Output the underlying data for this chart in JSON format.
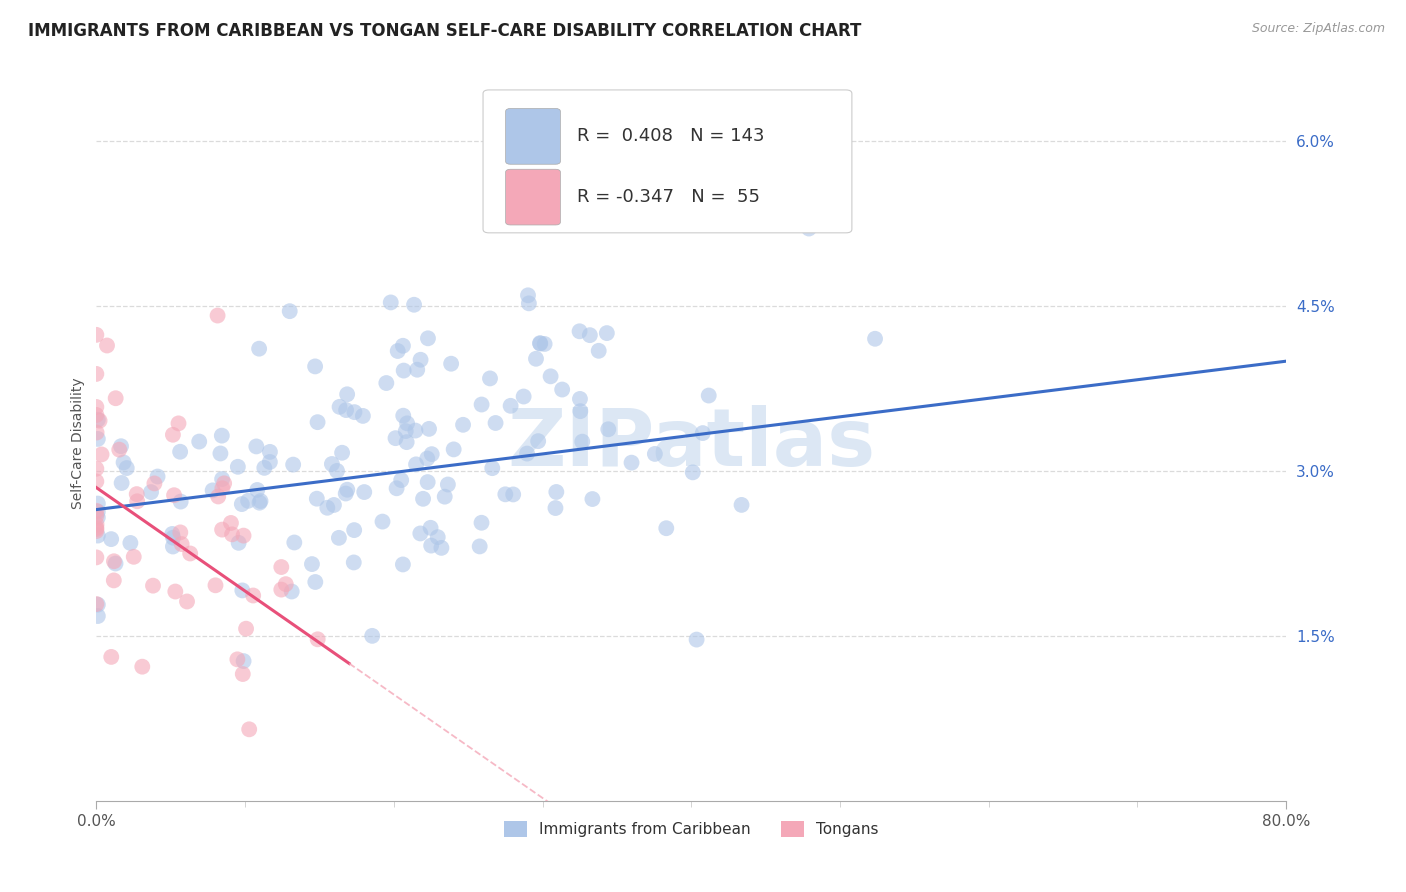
{
  "title": "IMMIGRANTS FROM CARIBBEAN VS TONGAN SELF-CARE DISABILITY CORRELATION CHART",
  "source_text": "Source: ZipAtlas.com",
  "ylabel": "Self-Care Disability",
  "x_min": 0.0,
  "x_max": 80.0,
  "y_min": 0.0,
  "y_max": 6.5,
  "y_ticks": [
    1.5,
    3.0,
    4.5,
    6.0
  ],
  "y_tick_labels": [
    "1.5%",
    "3.0%",
    "4.5%",
    "6.0%"
  ],
  "x_ticks": [
    0.0,
    80.0
  ],
  "x_tick_labels": [
    "0.0%",
    "80.0%"
  ],
  "legend_entries": [
    {
      "label": "Immigrants from Caribbean",
      "color": "#aec6e8"
    },
    {
      "label": "Tongans",
      "color": "#f4a8b8"
    }
  ],
  "stat_r1": "0.408",
  "stat_n1": "143",
  "stat_r2": "-0.347",
  "stat_n2": "55",
  "stat_color1": "#aec6e8",
  "stat_color2": "#f4a8b8",
  "blue_scatter_color": "#aec6e8",
  "pink_scatter_color": "#f4a8b8",
  "blue_line_color": "#3b6cc7",
  "pink_line_color": "#e8507a",
  "pink_dash_color": "#f4a8b8",
  "watermark_color": "#c5d8ee",
  "title_fontsize": 12,
  "axis_label_fontsize": 10,
  "tick_fontsize": 11,
  "stat_fontsize": 13,
  "background_color": "#ffffff",
  "grid_color": "#cccccc",
  "blue_line_y0": 2.65,
  "blue_line_y1": 4.0,
  "pink_line_x0": 0.0,
  "pink_line_y0": 2.85,
  "pink_line_x1": 17.0,
  "pink_line_y1": 1.25,
  "pink_dash_x0": 17.0,
  "pink_dash_x1": 32.0,
  "blue_x_mean": 18.0,
  "blue_y_mean": 3.1,
  "blue_x_std": 14.0,
  "blue_y_std": 0.65,
  "blue_R": 0.408,
  "blue_N": 143,
  "pink_x_mean": 3.5,
  "pink_y_mean": 2.6,
  "pink_x_std": 4.5,
  "pink_y_std": 0.85,
  "pink_R": -0.347,
  "pink_N": 55
}
